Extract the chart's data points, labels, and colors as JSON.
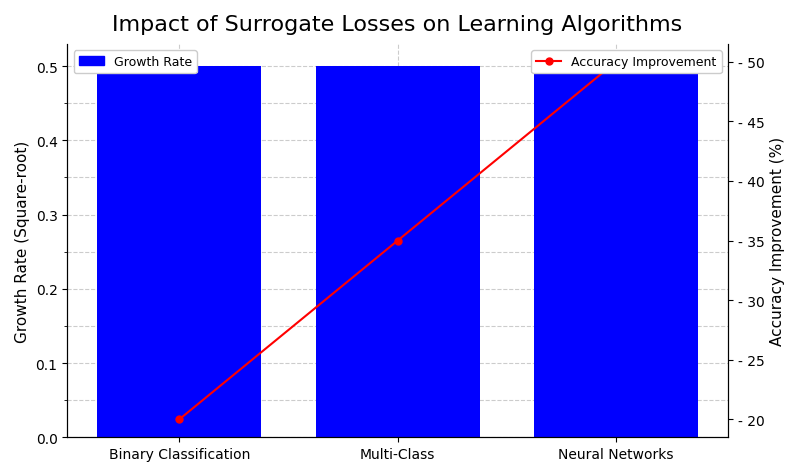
{
  "title": "Impact of Surrogate Losses on Learning Algorithms",
  "categories": [
    "Binary Classification",
    "Multi-Class",
    "Neural Networks"
  ],
  "bar_values": [
    0.5,
    0.5,
    0.5
  ],
  "bar_color": "#0000FF",
  "bar_width": 0.75,
  "left_ylabel": "Growth Rate (Square-root)",
  "left_ylim": [
    0.0,
    0.53
  ],
  "left_yticks": [
    0.0,
    0.1,
    0.2,
    0.3,
    0.4,
    0.5
  ],
  "right_ylabel": "Accuracy Improvement (%)",
  "right_ylim": [
    18.5,
    51.5
  ],
  "right_yticks": [
    20,
    25,
    30,
    35,
    40,
    45,
    50
  ],
  "line_values": [
    20,
    35,
    50
  ],
  "line_color": "red",
  "line_marker": "o",
  "line_label": "Accuracy Improvement",
  "bar_label": "Growth Rate",
  "grid_color": "#AAAAAA",
  "grid_style": "--",
  "grid_alpha": 0.6,
  "minor_grid_color": "#AAAAAA",
  "background_color": "#FFFFFF",
  "title_fontsize": 16,
  "axis_label_fontsize": 11,
  "tick_fontsize": 10,
  "right_tick_prefix": "- "
}
